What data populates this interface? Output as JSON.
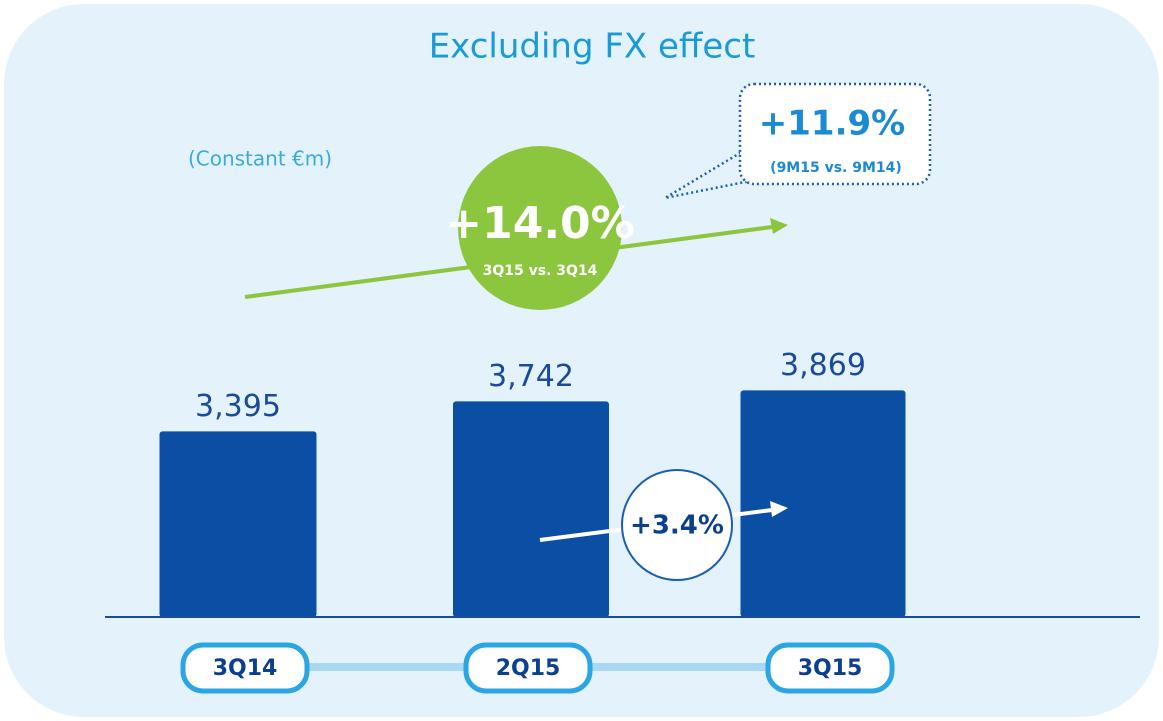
{
  "chart_data": {
    "type": "bar",
    "title": "Excluding FX effect",
    "subtitle": "(Constant €m)",
    "categories": [
      "3Q14",
      "2Q15",
      "3Q15"
    ],
    "values": [
      3395,
      3742,
      3869
    ],
    "value_labels": [
      "3,395",
      "3,742",
      "3,869"
    ],
    "color": "#0b4fa4",
    "ylim": [
      1250,
      4000
    ],
    "annotations": [
      "+14.0%",
      "3Q15 vs. 3Q14",
      "+11.9%",
      "(9M15 vs. 9M14)",
      "+3.4%"
    ]
  }
}
